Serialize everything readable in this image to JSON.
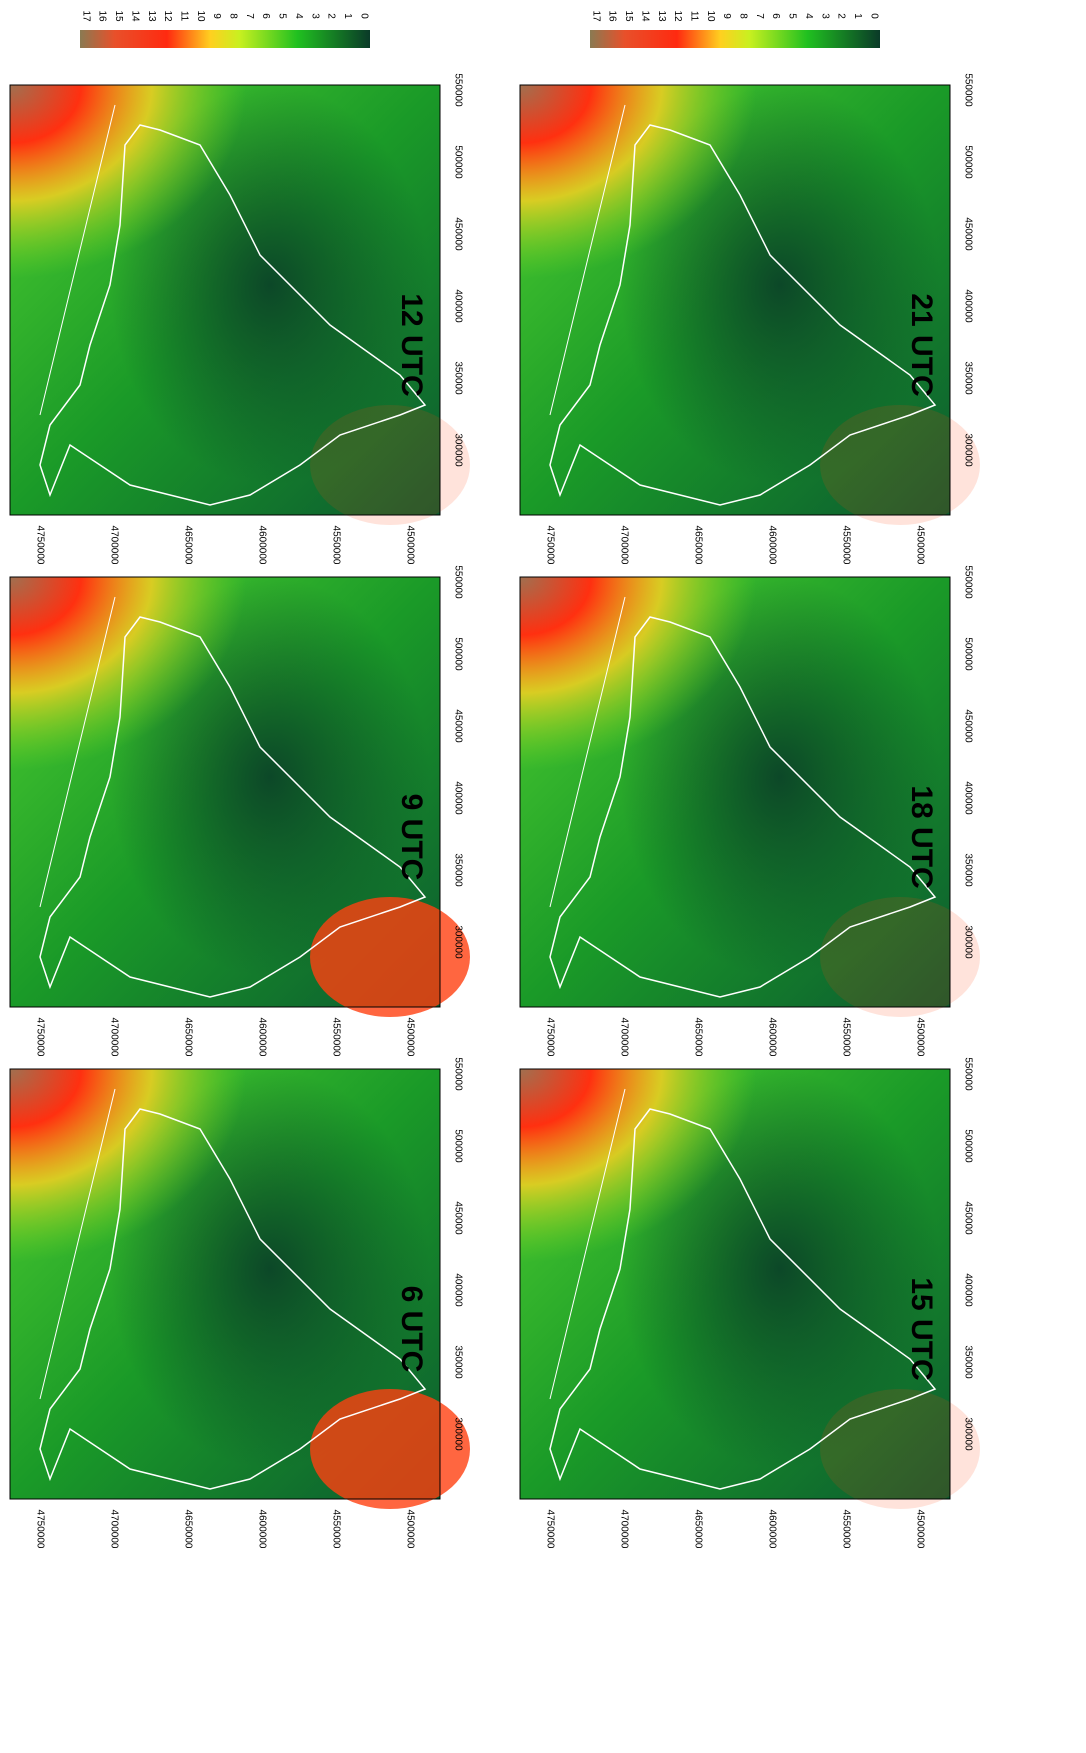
{
  "colorbar": {
    "ticks": [
      17,
      16,
      15,
      14,
      13,
      12,
      11,
      10,
      9,
      8,
      7,
      6,
      5,
      4,
      3,
      2,
      1,
      0
    ]
  },
  "axes": {
    "northing": [
      "4750000",
      "4700000",
      "4650000",
      "4600000",
      "4550000",
      "4500000"
    ],
    "easting": [
      "550000",
      "500000",
      "450000",
      "400000",
      "350000",
      "300000"
    ]
  },
  "panels": [
    {
      "label": "6 UTC"
    },
    {
      "label": "9 UTC"
    },
    {
      "label": "12 UTC"
    },
    {
      "label": "15 UTC"
    },
    {
      "label": "18 UTC"
    },
    {
      "label": "21 UTC"
    }
  ]
}
